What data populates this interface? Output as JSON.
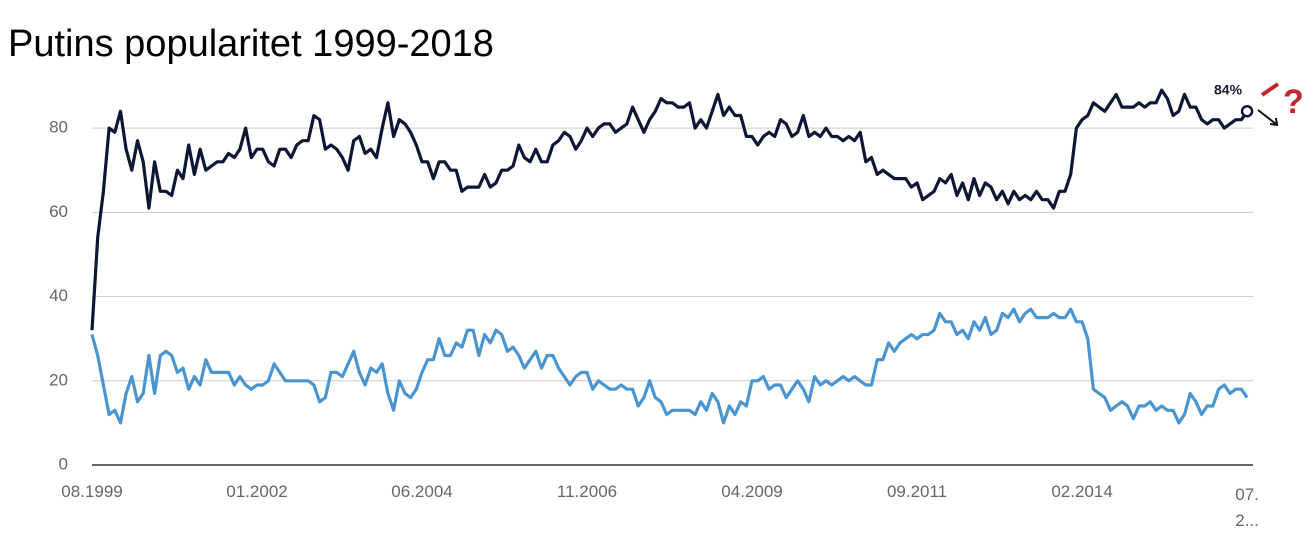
{
  "chart_data": {
    "type": "line",
    "title": "Putins popularitet 1999-2018",
    "categories": [
      "08.1999",
      null,
      null,
      null,
      null,
      null,
      null,
      null,
      null,
      null,
      null,
      null,
      null,
      null,
      null,
      null,
      null,
      null,
      null,
      null,
      null,
      null,
      null,
      null,
      null,
      null,
      null,
      null,
      null,
      "01.2002",
      null,
      null,
      null,
      null,
      null,
      null,
      null,
      null,
      null,
      null,
      null,
      null,
      null,
      null,
      null,
      null,
      null,
      null,
      null,
      null,
      null,
      null,
      null,
      null,
      null,
      null,
      null,
      null,
      "06.2004",
      null,
      null,
      null,
      null,
      null,
      null,
      null,
      null,
      null,
      null,
      null,
      null,
      null,
      null,
      null,
      null,
      null,
      null,
      null,
      null,
      null,
      null,
      null,
      null,
      null,
      null,
      null,
      null,
      "11.2006",
      null,
      null,
      null,
      null,
      null,
      null,
      null,
      null,
      null,
      null,
      null,
      null,
      null,
      null,
      null,
      null,
      null,
      null,
      null,
      null,
      null,
      null,
      null,
      null,
      null,
      null,
      null,
      null,
      "04.2009",
      null,
      null,
      null,
      null,
      null,
      null,
      null,
      null,
      null,
      null,
      null,
      null,
      null,
      null,
      null,
      null,
      null,
      null,
      null,
      null,
      null,
      null,
      null,
      null,
      null,
      null,
      null,
      null,
      "09.2011",
      null,
      null,
      null,
      null,
      null,
      null,
      null,
      null,
      null,
      null,
      null,
      null,
      null,
      null,
      null,
      null,
      null,
      null,
      null,
      null,
      null,
      null,
      null,
      null,
      null,
      null,
      null,
      null,
      "02.2014",
      null,
      null,
      null,
      null,
      null,
      null,
      null,
      null,
      null,
      null,
      null,
      null,
      null,
      null,
      null,
      null,
      null,
      null,
      null,
      null,
      null,
      null,
      null,
      null,
      null,
      null,
      null,
      null,
      "07. 2..."
    ],
    "series": [
      {
        "color": "#0d1633",
        "values": [
          32,
          54,
          65,
          80,
          79,
          84,
          75,
          70,
          77,
          72,
          61,
          72,
          65,
          65,
          64,
          70,
          68,
          76,
          69,
          75,
          70,
          71,
          72,
          72,
          74,
          73,
          75,
          80,
          73,
          75,
          75,
          72,
          71,
          75,
          75,
          73,
          76,
          77,
          77,
          83,
          82,
          75,
          76,
          75,
          73,
          70,
          77,
          78,
          74,
          75,
          73,
          80,
          86,
          78,
          82,
          81,
          79,
          76,
          72,
          72,
          68,
          72,
          72,
          70,
          70,
          65,
          66,
          66,
          66,
          69,
          66,
          67,
          70,
          70,
          71,
          76,
          73,
          72,
          75,
          72,
          72,
          76,
          77,
          79,
          78,
          75,
          77,
          80,
          78,
          80,
          81,
          81,
          79,
          80,
          81,
          85,
          82,
          79,
          82,
          84,
          87,
          86,
          86,
          85,
          85,
          86,
          80,
          82,
          80,
          84,
          88,
          83,
          85,
          83,
          83,
          78,
          78,
          76,
          78,
          79,
          78,
          82,
          81,
          78,
          79,
          83,
          78,
          79,
          78,
          80,
          78,
          78,
          77,
          78,
          77,
          79,
          72,
          73,
          69,
          70,
          69,
          68,
          68,
          68,
          66,
          67,
          63,
          64,
          65,
          68,
          67,
          69,
          64,
          67,
          63,
          68,
          64,
          67,
          66,
          63,
          65,
          62,
          65,
          63,
          64,
          63,
          65,
          63,
          63,
          61,
          65,
          65,
          69,
          80,
          82,
          83,
          86,
          85,
          84,
          86,
          88,
          85,
          85,
          85,
          86,
          85,
          86,
          86,
          89,
          87,
          83,
          84,
          88,
          85,
          85,
          82,
          81,
          82,
          82,
          80,
          81,
          82,
          82,
          84
        ]
      },
      {
        "color": "#4a95cf",
        "values": [
          31,
          26,
          19,
          12,
          13,
          10,
          17,
          21,
          15,
          17,
          26,
          17,
          26,
          27,
          26,
          22,
          23,
          18,
          21,
          19,
          25,
          22,
          22,
          22,
          22,
          19,
          21,
          19,
          18,
          19,
          19,
          20,
          24,
          22,
          20,
          20,
          20,
          20,
          20,
          19,
          15,
          16,
          22,
          22,
          21,
          24,
          27,
          22,
          19,
          23,
          22,
          24,
          17,
          13,
          20,
          17,
          16,
          18,
          22,
          25,
          25,
          30,
          26,
          26,
          29,
          28,
          32,
          32,
          26,
          31,
          29,
          32,
          31,
          27,
          28,
          26,
          23,
          25,
          27,
          23,
          26,
          26,
          23,
          21,
          19,
          21,
          22,
          22,
          18,
          20,
          19,
          18,
          18,
          19,
          18,
          18,
          14,
          16,
          20,
          16,
          15,
          12,
          13,
          13,
          13,
          13,
          12,
          15,
          13,
          17,
          15,
          10,
          14,
          12,
          15,
          14,
          20,
          20,
          21,
          18,
          19,
          19,
          16,
          18,
          20,
          18,
          15,
          21,
          19,
          20,
          19,
          20,
          21,
          20,
          21,
          20,
          19,
          19,
          25,
          25,
          29,
          27,
          29,
          30,
          31,
          30,
          31,
          31,
          32,
          36,
          34,
          34,
          31,
          32,
          30,
          34,
          32,
          35,
          31,
          32,
          36,
          35,
          37,
          34,
          36,
          37,
          35,
          35,
          35,
          36,
          35,
          35,
          37,
          34,
          34,
          30,
          18,
          17,
          16,
          13,
          14,
          15,
          14,
          11,
          14,
          14,
          15,
          13,
          14,
          13,
          13,
          10,
          12,
          17,
          15,
          12,
          14,
          14,
          18,
          19,
          17,
          18,
          18,
          16
        ]
      }
    ],
    "ylim": [
      0,
      90
    ],
    "yticks": [
      0,
      20,
      40,
      60,
      80
    ],
    "grid": true,
    "annotations": [
      "84%",
      "?"
    ]
  }
}
